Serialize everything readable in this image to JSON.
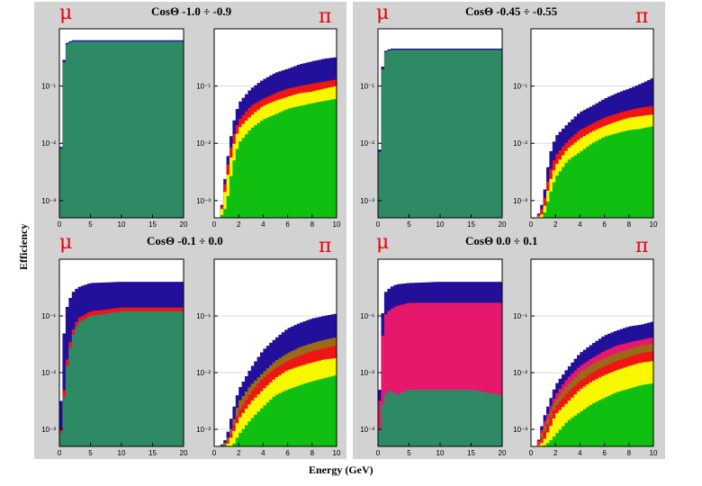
{
  "figure": {
    "xlabel": "Energy (GeV)",
    "ylabel": "Efficiency",
    "colors": {
      "blue": "#23109a",
      "red": "#f01515",
      "yellow": "#f7f700",
      "green": "#10c010",
      "teal": "#2e8a64",
      "pink": "#e6186c",
      "brown": "#9a6a18",
      "header": "#cfcfcf",
      "plot_bg": "#ffffff",
      "grid": "#dddddd"
    },
    "panels": [
      {
        "title": "CosΘ -1.0 ÷ -0.9",
        "left_symbol": "μ",
        "right_symbol": "π"
      },
      {
        "title": "CosΘ -0.45 ÷ -0.55",
        "left_symbol": "μ",
        "right_symbol": "π"
      },
      {
        "title": "CosΘ -0.1 ÷ 0.0",
        "left_symbol": "μ",
        "right_symbol": "π"
      },
      {
        "title": "CosΘ  0.0 ÷ 0.1",
        "left_symbol": "μ",
        "right_symbol": "π"
      }
    ]
  },
  "chart_data": [
    {
      "type": "area",
      "panel": 0,
      "particle": "μ",
      "log_y": true,
      "xlim": [
        0,
        20
      ],
      "ylim": [
        0.0005,
        1
      ],
      "xticks": [
        "0",
        "5",
        "10",
        "15",
        "20"
      ],
      "yticks": [
        "10⁻¹",
        "10⁻²",
        "10⁻³"
      ],
      "x": [
        0,
        0.5,
        1,
        2,
        5,
        10,
        15,
        20
      ],
      "series": [
        {
          "color": "blue",
          "values": [
            0.0005,
            0.15,
            0.55,
            0.63,
            0.63,
            0.63,
            0.63,
            0.63
          ]
        },
        {
          "color": "teal",
          "values": [
            0.0005,
            0.13,
            0.52,
            0.6,
            0.6,
            0.6,
            0.6,
            0.6
          ]
        }
      ]
    },
    {
      "type": "area",
      "panel": 0,
      "particle": "π",
      "log_y": true,
      "xlim": [
        0,
        10
      ],
      "ylim": [
        0.0005,
        1
      ],
      "xticks": [
        "0",
        "2",
        "4",
        "6",
        "8",
        "10"
      ],
      "yticks": [
        "10⁻¹",
        "10⁻²",
        "10⁻³"
      ],
      "x": [
        0.5,
        1,
        1.5,
        2,
        3,
        4,
        5,
        6,
        7,
        8,
        9,
        10
      ],
      "series": [
        {
          "color": "blue",
          "values": [
            0.0005,
            0.004,
            0.02,
            0.05,
            0.09,
            0.13,
            0.17,
            0.2,
            0.24,
            0.27,
            0.3,
            0.32
          ]
        },
        {
          "color": "red",
          "values": [
            0.0005,
            0.003,
            0.012,
            0.025,
            0.045,
            0.06,
            0.075,
            0.09,
            0.1,
            0.11,
            0.12,
            0.13
          ]
        },
        {
          "color": "yellow",
          "values": [
            0.0005,
            0.002,
            0.008,
            0.018,
            0.03,
            0.045,
            0.055,
            0.065,
            0.075,
            0.08,
            0.09,
            0.1
          ]
        },
        {
          "color": "green",
          "values": [
            0.0005,
            0.0008,
            0.004,
            0.01,
            0.018,
            0.026,
            0.032,
            0.04,
            0.045,
            0.05,
            0.055,
            0.06
          ]
        }
      ]
    },
    {
      "type": "area",
      "panel": 1,
      "particle": "μ",
      "log_y": true,
      "xlim": [
        0,
        20
      ],
      "ylim": [
        0.0005,
        1
      ],
      "xticks": [
        "0",
        "5",
        "10",
        "15",
        "20"
      ],
      "yticks": [
        "10⁻¹",
        "10⁻²",
        "10⁻³"
      ],
      "x": [
        0,
        0.5,
        1,
        2,
        5,
        10,
        15,
        20
      ],
      "series": [
        {
          "color": "blue",
          "values": [
            0.0005,
            0.12,
            0.4,
            0.45,
            0.45,
            0.45,
            0.45,
            0.45
          ]
        },
        {
          "color": "teal",
          "values": [
            0.0005,
            0.1,
            0.38,
            0.43,
            0.43,
            0.43,
            0.43,
            0.43
          ]
        }
      ]
    },
    {
      "type": "area",
      "panel": 1,
      "particle": "π",
      "log_y": true,
      "xlim": [
        0,
        10
      ],
      "ylim": [
        0.0005,
        1
      ],
      "xticks": [
        "0",
        "2",
        "4",
        "6",
        "8",
        "10"
      ],
      "yticks": [
        "10⁻¹",
        "10⁻²",
        "10⁻³"
      ],
      "x": [
        0.5,
        1,
        1.5,
        2,
        3,
        4,
        5,
        6,
        7,
        8,
        9,
        10
      ],
      "series": [
        {
          "color": "blue",
          "values": [
            0.0005,
            0.001,
            0.006,
            0.013,
            0.022,
            0.035,
            0.045,
            0.06,
            0.075,
            0.09,
            0.11,
            0.14
          ]
        },
        {
          "color": "red",
          "values": [
            0.0005,
            0.0008,
            0.003,
            0.006,
            0.011,
            0.017,
            0.022,
            0.028,
            0.033,
            0.038,
            0.042,
            0.045
          ]
        },
        {
          "color": "yellow",
          "values": [
            0.0005,
            0.0006,
            0.002,
            0.004,
            0.008,
            0.012,
            0.016,
            0.02,
            0.024,
            0.028,
            0.03,
            0.032
          ]
        },
        {
          "color": "green",
          "values": [
            0.0005,
            0.0005,
            0.0012,
            0.0025,
            0.005,
            0.007,
            0.01,
            0.013,
            0.015,
            0.017,
            0.018,
            0.02
          ]
        }
      ]
    },
    {
      "type": "area",
      "panel": 2,
      "particle": "μ",
      "log_y": true,
      "xlim": [
        0,
        20
      ],
      "ylim": [
        0.0005,
        1
      ],
      "xticks": [
        "0",
        "5",
        "10",
        "15",
        "20"
      ],
      "yticks": [
        "10⁻¹",
        "10⁻²",
        "10⁻³"
      ],
      "x": [
        0,
        0.5,
        1,
        2,
        3,
        5,
        10,
        15,
        20
      ],
      "series": [
        {
          "color": "blue",
          "values": [
            0.0005,
            0.02,
            0.12,
            0.25,
            0.32,
            0.38,
            0.4,
            0.4,
            0.4
          ]
        },
        {
          "color": "red",
          "values": [
            0.0005,
            0.002,
            0.012,
            0.05,
            0.09,
            0.12,
            0.14,
            0.14,
            0.14
          ]
        },
        {
          "color": "teal",
          "values": [
            0.0005,
            0.0015,
            0.009,
            0.04,
            0.075,
            0.1,
            0.12,
            0.12,
            0.12
          ]
        }
      ]
    },
    {
      "type": "area",
      "panel": 2,
      "particle": "π",
      "log_y": true,
      "xlim": [
        0,
        10
      ],
      "ylim": [
        0.0005,
        1
      ],
      "xticks": [
        "0",
        "2",
        "4",
        "6",
        "8",
        "10"
      ],
      "yticks": [
        "10⁻¹",
        "10⁻²",
        "10⁻³"
      ],
      "x": [
        0.5,
        1,
        1.5,
        2,
        3,
        4,
        5,
        6,
        7,
        8,
        9,
        10
      ],
      "series": [
        {
          "color": "blue",
          "values": [
            0.0005,
            0.0007,
            0.002,
            0.005,
            0.012,
            0.025,
            0.04,
            0.06,
            0.075,
            0.09,
            0.1,
            0.11
          ]
        },
        {
          "color": "brown",
          "values": [
            0.0005,
            0.0006,
            0.0012,
            0.003,
            0.006,
            0.01,
            0.016,
            0.022,
            0.028,
            0.033,
            0.038,
            0.042
          ]
        },
        {
          "color": "red",
          "values": [
            0.0005,
            0.0005,
            0.001,
            0.002,
            0.0045,
            0.008,
            0.012,
            0.016,
            0.02,
            0.024,
            0.027,
            0.03
          ]
        },
        {
          "color": "yellow",
          "values": [
            0.0005,
            0.0005,
            0.0008,
            0.0015,
            0.003,
            0.005,
            0.008,
            0.011,
            0.013,
            0.015,
            0.017,
            0.018
          ]
        },
        {
          "color": "green",
          "values": [
            0.0005,
            0.0005,
            0.0005,
            0.0008,
            0.0015,
            0.0025,
            0.004,
            0.005,
            0.006,
            0.007,
            0.008,
            0.009
          ]
        }
      ]
    },
    {
      "type": "area",
      "panel": 3,
      "particle": "μ",
      "log_y": true,
      "xlim": [
        0,
        20
      ],
      "ylim": [
        0.0005,
        1
      ],
      "xticks": [
        "0",
        "5",
        "10",
        "15",
        "20"
      ],
      "yticks": [
        "10⁻¹",
        "10⁻²",
        "10⁻³"
      ],
      "x": [
        0,
        0.5,
        1,
        2,
        3,
        5,
        10,
        15,
        20
      ],
      "series": [
        {
          "color": "blue",
          "values": [
            0.0005,
            0.05,
            0.25,
            0.32,
            0.36,
            0.38,
            0.4,
            0.4,
            0.4
          ]
        },
        {
          "color": "pink",
          "values": [
            0.0005,
            0.02,
            0.1,
            0.13,
            0.15,
            0.17,
            0.17,
            0.17,
            0.17
          ]
        },
        {
          "color": "teal",
          "values": [
            0.0005,
            0.002,
            0.004,
            0.005,
            0.004,
            0.005,
            0.005,
            0.005,
            0.004
          ]
        }
      ]
    },
    {
      "type": "area",
      "panel": 3,
      "particle": "π",
      "log_y": true,
      "xlim": [
        0,
        10
      ],
      "ylim": [
        0.0005,
        1
      ],
      "xticks": [
        "0",
        "2",
        "4",
        "6",
        "8",
        "10"
      ],
      "yticks": [
        "10⁻¹",
        "10⁻²",
        "10⁻³"
      ],
      "x": [
        0.5,
        1,
        1.5,
        2,
        3,
        4,
        5,
        6,
        7,
        8,
        9,
        10
      ],
      "series": [
        {
          "color": "blue",
          "values": [
            0.0005,
            0.0015,
            0.003,
            0.006,
            0.012,
            0.022,
            0.032,
            0.045,
            0.055,
            0.065,
            0.07,
            0.08
          ]
        },
        {
          "color": "pink",
          "values": [
            0.0005,
            0.0012,
            0.0022,
            0.004,
            0.008,
            0.013,
            0.018,
            0.024,
            0.03,
            0.034,
            0.038,
            0.042
          ]
        },
        {
          "color": "brown",
          "values": [
            0.0005,
            0.001,
            0.0018,
            0.0032,
            0.006,
            0.01,
            0.014,
            0.018,
            0.022,
            0.026,
            0.03,
            0.032
          ]
        },
        {
          "color": "red",
          "values": [
            0.0005,
            0.0008,
            0.0014,
            0.0025,
            0.0045,
            0.007,
            0.01,
            0.013,
            0.016,
            0.019,
            0.022,
            0.024
          ]
        },
        {
          "color": "yellow",
          "values": [
            0.0005,
            0.0006,
            0.001,
            0.0018,
            0.003,
            0.005,
            0.007,
            0.009,
            0.011,
            0.013,
            0.015,
            0.016
          ]
        },
        {
          "color": "green",
          "values": [
            0.0005,
            0.0005,
            0.0006,
            0.0008,
            0.0014,
            0.002,
            0.0028,
            0.0036,
            0.0045,
            0.0052,
            0.006,
            0.0065
          ]
        }
      ]
    }
  ]
}
